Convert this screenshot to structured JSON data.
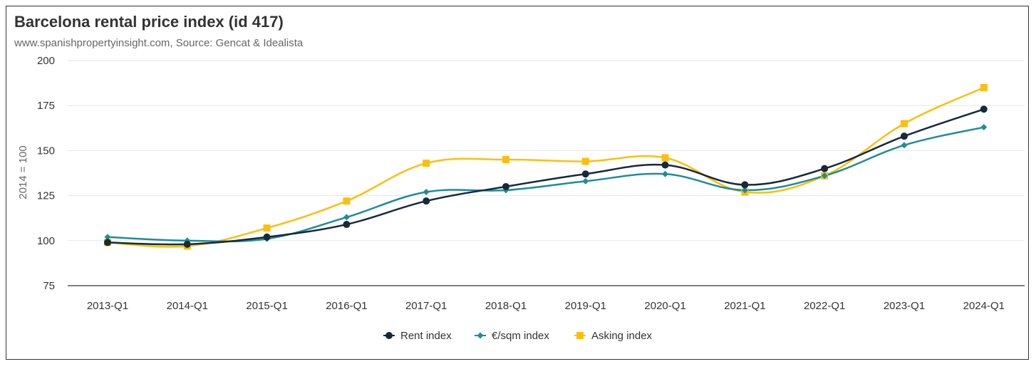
{
  "chart_data": {
    "type": "line",
    "title": "Barcelona rental price index (id 417)",
    "subtitle": "www.spanishpropertyinsight.com, Source: Gencat & Idealista",
    "ylabel": "2014 = 100",
    "xlabel": "",
    "categories": [
      "2013-Q1",
      "2014-Q1",
      "2015-Q1",
      "2016-Q1",
      "2017-Q1",
      "2018-Q1",
      "2019-Q1",
      "2020-Q1",
      "2021-Q1",
      "2022-Q1",
      "2023-Q1",
      "2024-Q1"
    ],
    "ylim": [
      75,
      200
    ],
    "yticks": [
      75,
      100,
      125,
      150,
      175,
      200
    ],
    "grid": true,
    "legend_position": "bottom-center",
    "series": [
      {
        "name": "Rent index",
        "color": "#17293a",
        "marker": "circle",
        "values": [
          99,
          98,
          102,
          109,
          122,
          130,
          137,
          142,
          131,
          140,
          158,
          173
        ]
      },
      {
        "name": "€/sqm index",
        "color": "#1f8c98",
        "marker": "diamond",
        "values": [
          102,
          100,
          101,
          113,
          127,
          128,
          133,
          137,
          128,
          136,
          153,
          163
        ]
      },
      {
        "name": "Asking index",
        "color": "#fbbf0e",
        "marker": "square",
        "values": [
          99,
          97,
          107,
          122,
          143,
          145,
          144,
          146,
          127,
          136,
          165,
          185
        ]
      }
    ]
  }
}
